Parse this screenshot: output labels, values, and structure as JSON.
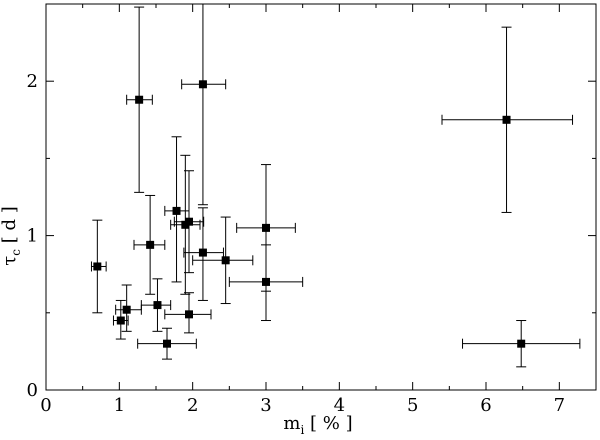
{
  "chart_data": {
    "type": "scatter",
    "title": "",
    "xlabel": {
      "base": "m",
      "sub": "i",
      "rest": " [ % ]"
    },
    "ylabel": {
      "base": "τ",
      "sub": "c",
      "rest": " [ d ]"
    },
    "xlim": [
      0,
      7.5
    ],
    "ylim": [
      0,
      2.5
    ],
    "xticks": [
      0,
      1,
      2,
      3,
      4,
      5,
      6,
      7
    ],
    "yticks": [
      0,
      1,
      2
    ],
    "grid": false,
    "error_bars": true,
    "points": [
      {
        "x": 0.7,
        "y": 0.8,
        "xlo": 0.62,
        "xhi": 0.82,
        "ylo": 0.5,
        "yhi": 1.1
      },
      {
        "x": 1.02,
        "y": 0.45,
        "xlo": 0.92,
        "xhi": 1.12,
        "ylo": 0.33,
        "yhi": 0.58
      },
      {
        "x": 1.1,
        "y": 0.52,
        "xlo": 0.95,
        "xhi": 1.3,
        "ylo": 0.38,
        "yhi": 0.68
      },
      {
        "x": 1.27,
        "y": 1.88,
        "xlo": 1.1,
        "xhi": 1.45,
        "ylo": 1.28,
        "yhi": 2.48
      },
      {
        "x": 1.42,
        "y": 0.94,
        "xlo": 1.2,
        "xhi": 1.62,
        "ylo": 0.62,
        "yhi": 1.26
      },
      {
        "x": 1.52,
        "y": 0.55,
        "xlo": 1.3,
        "xhi": 1.7,
        "ylo": 0.38,
        "yhi": 0.72
      },
      {
        "x": 1.65,
        "y": 0.3,
        "xlo": 1.25,
        "xhi": 2.05,
        "ylo": 0.2,
        "yhi": 0.4
      },
      {
        "x": 1.78,
        "y": 1.16,
        "xlo": 1.62,
        "xhi": 1.95,
        "ylo": 0.7,
        "yhi": 1.64
      },
      {
        "x": 1.9,
        "y": 1.07,
        "xlo": 1.7,
        "xhi": 2.1,
        "ylo": 0.62,
        "yhi": 1.52
      },
      {
        "x": 1.95,
        "y": 1.09,
        "xlo": 1.75,
        "xhi": 2.15,
        "ylo": 0.76,
        "yhi": 1.42
      },
      {
        "x": 1.95,
        "y": 0.49,
        "xlo": 1.62,
        "xhi": 2.25,
        "ylo": 0.37,
        "yhi": 0.63
      },
      {
        "x": 2.14,
        "y": 1.98,
        "xlo": 1.85,
        "xhi": 2.45,
        "ylo": 1.2,
        "yhi": 2.5
      },
      {
        "x": 2.14,
        "y": 0.89,
        "xlo": 1.88,
        "xhi": 2.42,
        "ylo": 0.58,
        "yhi": 1.18
      },
      {
        "x": 2.45,
        "y": 0.84,
        "xlo": 2.0,
        "xhi": 2.82,
        "ylo": 0.56,
        "yhi": 1.12
      },
      {
        "x": 3.0,
        "y": 1.05,
        "xlo": 2.6,
        "xhi": 3.4,
        "ylo": 0.64,
        "yhi": 1.46
      },
      {
        "x": 3.0,
        "y": 0.7,
        "xlo": 2.5,
        "xhi": 3.5,
        "ylo": 0.45,
        "yhi": 0.94
      },
      {
        "x": 6.28,
        "y": 1.75,
        "xlo": 5.4,
        "xhi": 7.18,
        "ylo": 1.15,
        "yhi": 2.35
      },
      {
        "x": 6.48,
        "y": 0.3,
        "xlo": 5.68,
        "xhi": 7.28,
        "ylo": 0.15,
        "yhi": 0.45
      }
    ]
  }
}
